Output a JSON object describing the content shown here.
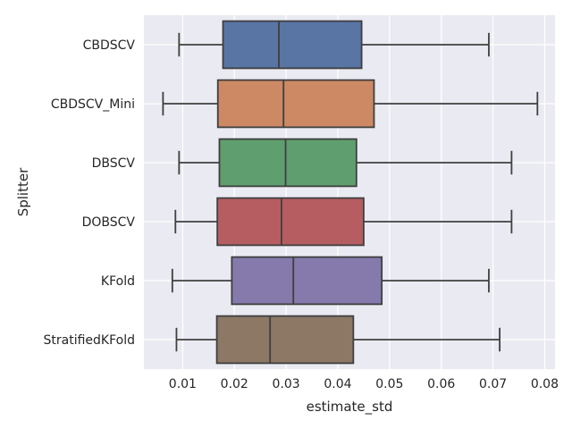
{
  "chart_data": {
    "type": "box",
    "orientation": "horizontal",
    "title": "",
    "xlabel": "estimate_std",
    "ylabel": "Splitter",
    "xlim": [
      0.0025,
      0.082
    ],
    "xticks": [
      0.01,
      0.02,
      0.03,
      0.04,
      0.05,
      0.06,
      0.07,
      0.08
    ],
    "xtick_labels": [
      "0.01",
      "0.02",
      "0.03",
      "0.04",
      "0.05",
      "0.06",
      "0.07",
      "0.08"
    ],
    "grid": true,
    "background_color": "#eaeaf2",
    "categories": [
      "CBDSCV",
      "CBDSCV_Mini",
      "DBSCV",
      "DOBSCV",
      "KFold",
      "StratifiedKFold"
    ],
    "series": [
      {
        "category": "CBDSCV",
        "whisker_low": 0.0093,
        "q1": 0.0178,
        "median": 0.0286,
        "q3": 0.0446,
        "whisker_high": 0.0692,
        "color": "#5875a4"
      },
      {
        "category": "CBDSCV_Mini",
        "whisker_low": 0.0062,
        "q1": 0.0168,
        "median": 0.0295,
        "q3": 0.047,
        "whisker_high": 0.0786,
        "color": "#cc8963"
      },
      {
        "category": "DBSCV",
        "whisker_low": 0.0093,
        "q1": 0.0171,
        "median": 0.0299,
        "q3": 0.0436,
        "whisker_high": 0.0736,
        "color": "#5f9e6e"
      },
      {
        "category": "DOBSCV",
        "whisker_low": 0.0086,
        "q1": 0.0167,
        "median": 0.0291,
        "q3": 0.045,
        "whisker_high": 0.0736,
        "color": "#b55d60"
      },
      {
        "category": "KFold",
        "whisker_low": 0.008,
        "q1": 0.0195,
        "median": 0.0314,
        "q3": 0.0485,
        "whisker_high": 0.0692,
        "color": "#857aab"
      },
      {
        "category": "StratifiedKFold",
        "whisker_low": 0.0088,
        "q1": 0.0166,
        "median": 0.0269,
        "q3": 0.043,
        "whisker_high": 0.0713,
        "color": "#8d7866"
      }
    ]
  }
}
